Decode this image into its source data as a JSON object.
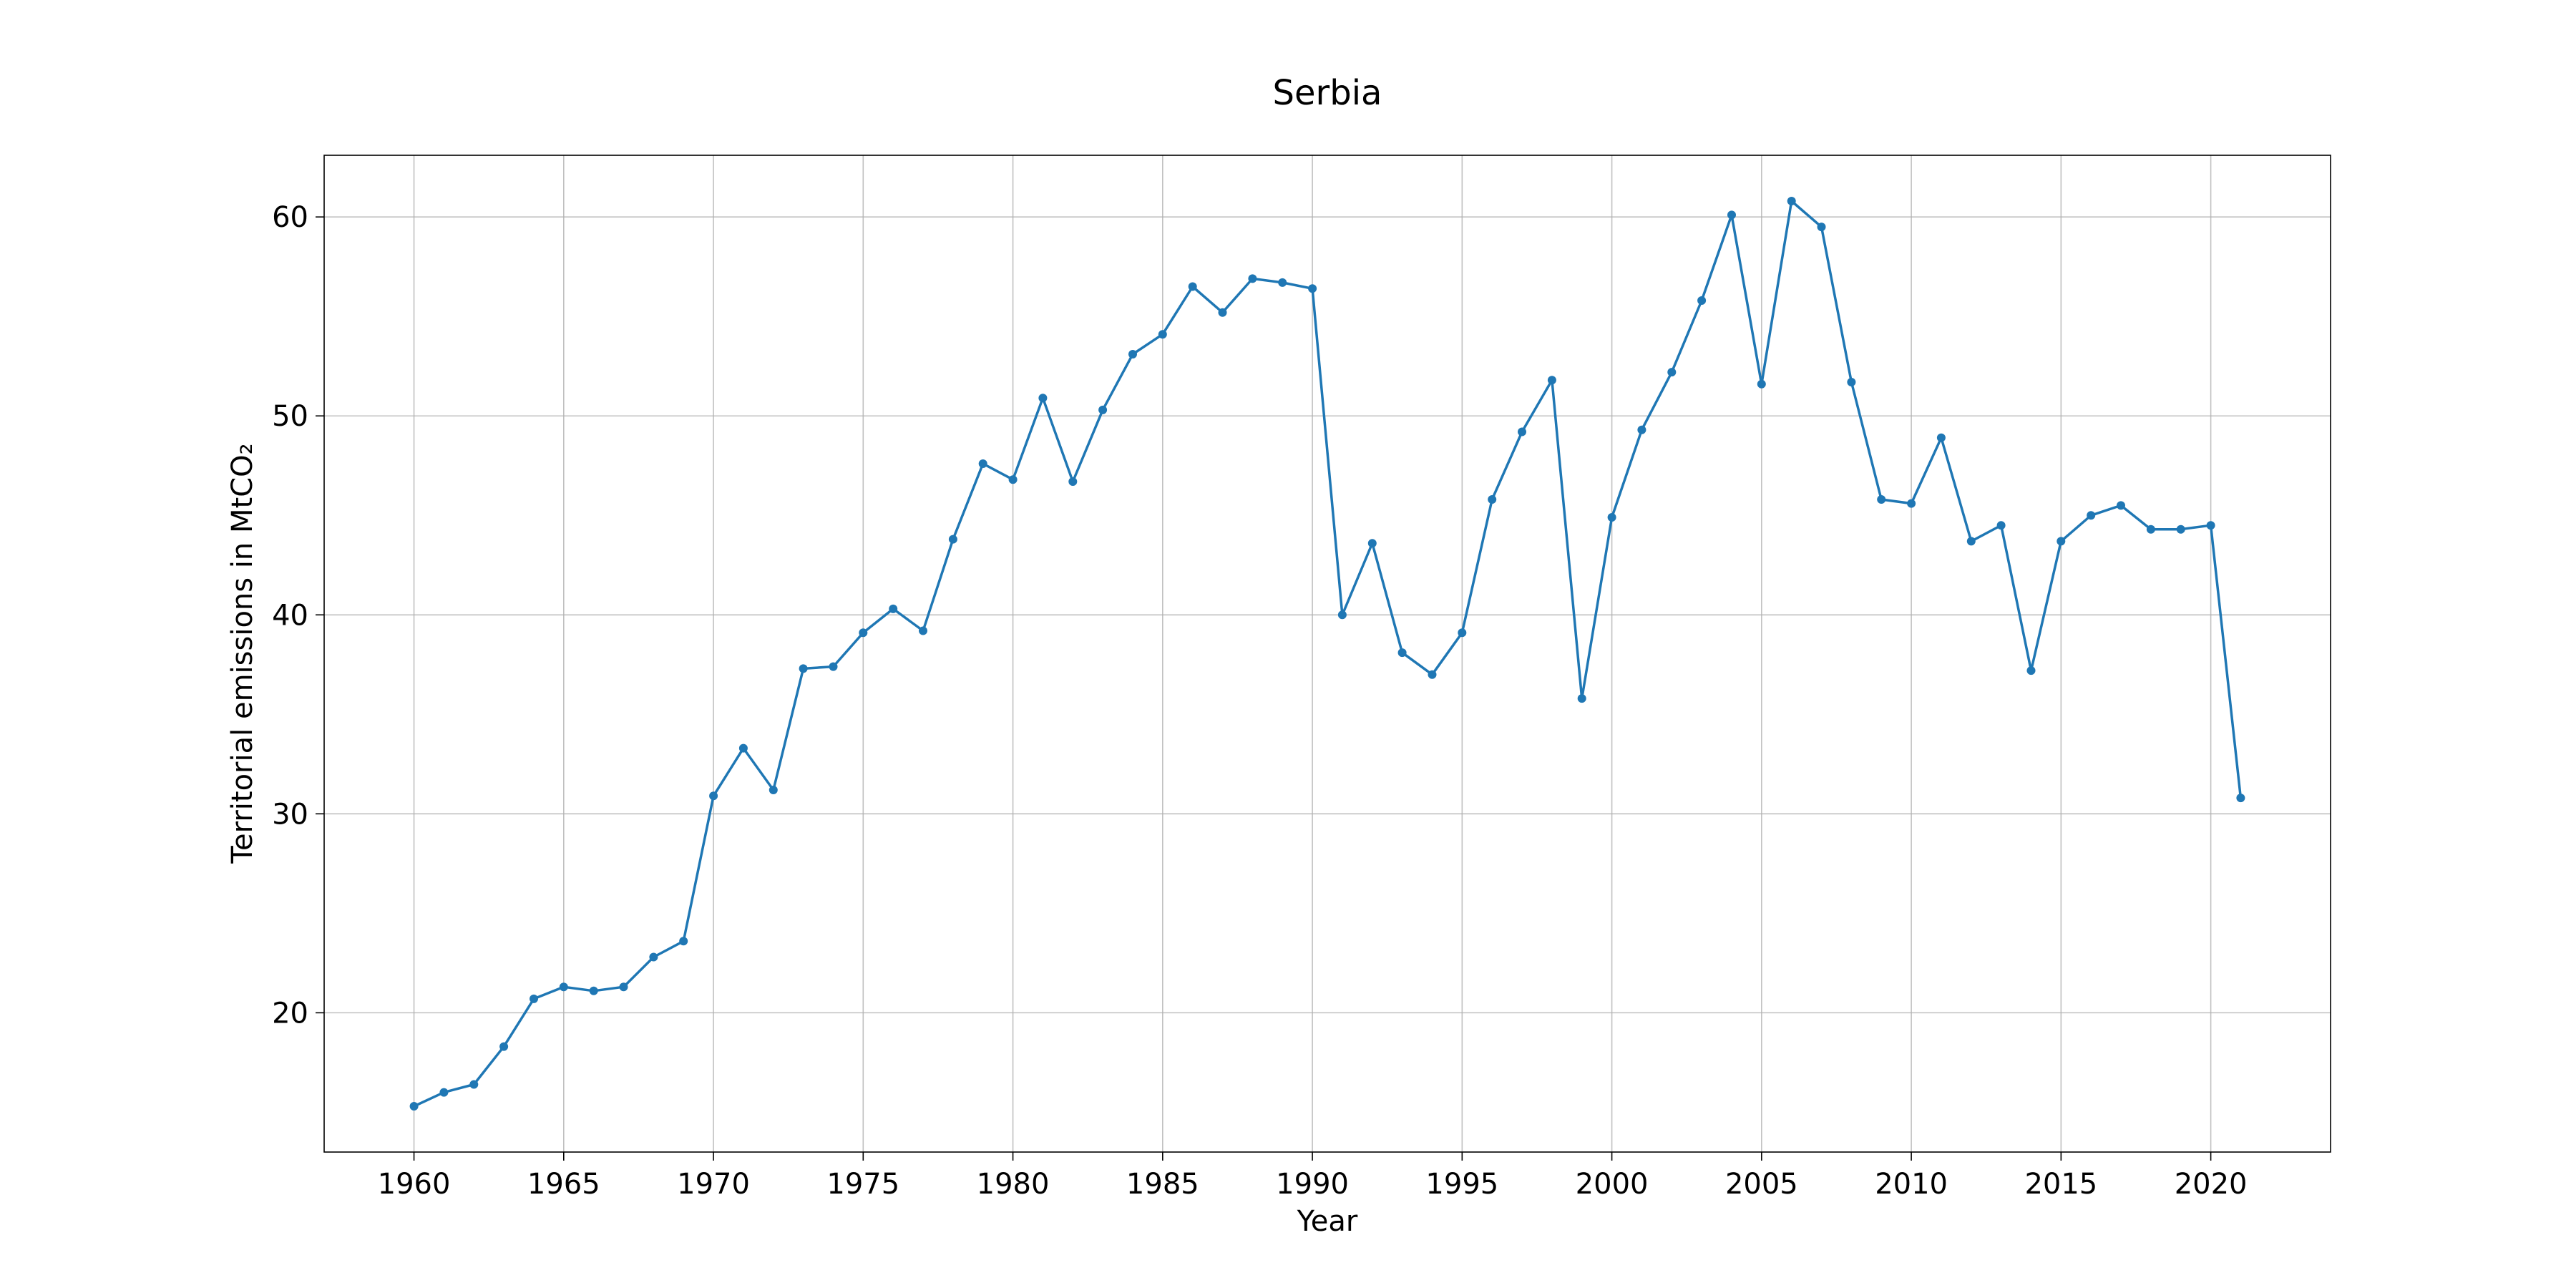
{
  "chart_data": {
    "type": "line",
    "title": "Serbia",
    "xlabel": "Year",
    "ylabel": "Territorial emissions in MtCO₂",
    "xlim": [
      1957,
      2024
    ],
    "ylim": [
      13.0,
      63.1
    ],
    "xticks": [
      1960,
      1965,
      1970,
      1975,
      1980,
      1985,
      1990,
      1995,
      2000,
      2005,
      2010,
      2015,
      2020
    ],
    "yticks": [
      20,
      30,
      40,
      50,
      60
    ],
    "grid": true,
    "color": "#1f77b4",
    "x": [
      1960,
      1961,
      1962,
      1963,
      1964,
      1965,
      1966,
      1967,
      1968,
      1969,
      1970,
      1971,
      1972,
      1973,
      1974,
      1975,
      1976,
      1977,
      1978,
      1979,
      1980,
      1981,
      1982,
      1983,
      1984,
      1985,
      1986,
      1987,
      1988,
      1989,
      1990,
      1991,
      1992,
      1993,
      1994,
      1995,
      1996,
      1997,
      1998,
      1999,
      2000,
      2001,
      2002,
      2003,
      2004,
      2005,
      2006,
      2007,
      2008,
      2009,
      2010,
      2011,
      2012,
      2013,
      2014,
      2015,
      2016,
      2017,
      2018,
      2019,
      2020,
      2021
    ],
    "y": [
      15.3,
      16.0,
      16.4,
      18.3,
      20.7,
      21.3,
      21.1,
      21.3,
      22.8,
      23.6,
      30.9,
      33.3,
      31.2,
      37.3,
      37.4,
      39.1,
      40.3,
      39.2,
      43.8,
      47.6,
      46.8,
      50.9,
      46.7,
      50.3,
      53.1,
      54.1,
      56.5,
      55.2,
      56.9,
      56.7,
      56.4,
      40.0,
      43.6,
      38.1,
      37.0,
      39.1,
      45.8,
      49.2,
      51.8,
      35.8,
      44.9,
      49.3,
      52.2,
      55.8,
      60.1,
      51.6,
      60.8,
      59.5,
      51.7,
      45.8,
      45.6,
      48.9,
      43.7,
      44.5,
      37.2,
      43.7,
      45.0,
      45.5,
      44.3,
      44.3,
      44.5,
      30.8
    ]
  }
}
